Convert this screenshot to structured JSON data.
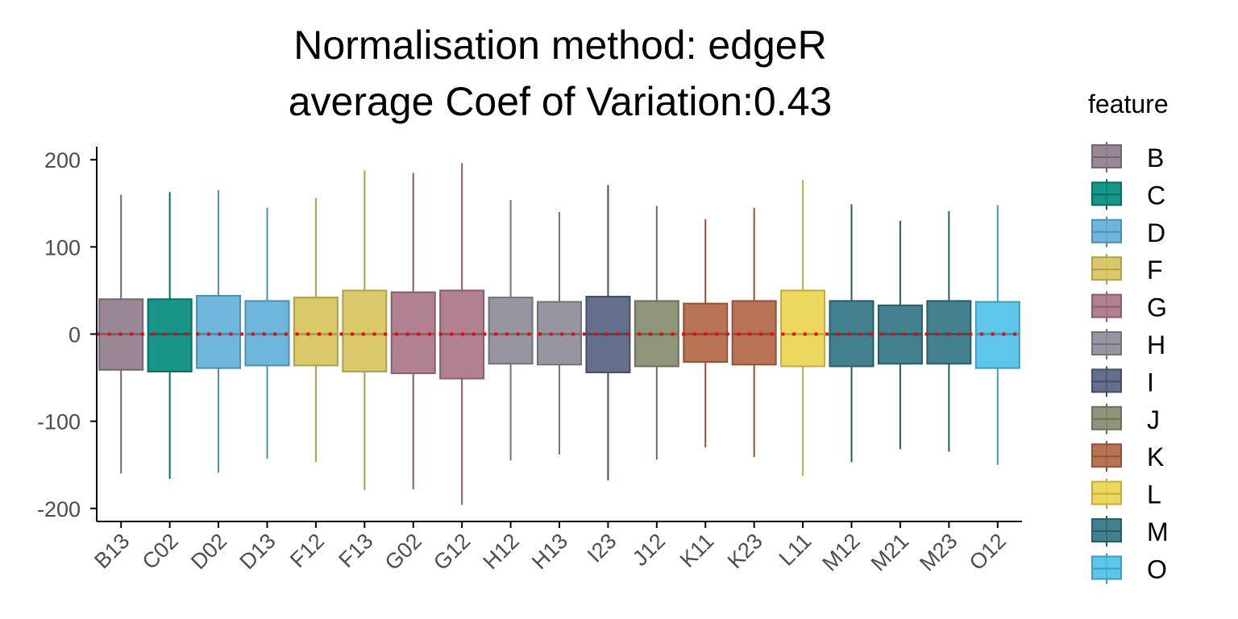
{
  "chart_data": {
    "type": "box",
    "title": [
      "Normalisation method: edgeR",
      "average Coef of Variation:0.43"
    ],
    "xlabel": "",
    "ylabel": "",
    "ylim": [
      -215,
      215
    ],
    "yticks": [
      -200,
      -100,
      0,
      100,
      200
    ],
    "ytick_labels": [
      "-200",
      "-100",
      "0",
      "100",
      "200"
    ],
    "reference_line": {
      "y": 0,
      "style": "dotted",
      "color": "#ff0000"
    },
    "grid": false,
    "legend": {
      "title": "feature",
      "placement": "right",
      "entries": [
        {
          "label": "B",
          "color": "#8f7a8a"
        },
        {
          "label": "C",
          "color": "#00897b"
        },
        {
          "label": "D",
          "color": "#5eaed8"
        },
        {
          "label": "F",
          "color": "#d6c35a"
        },
        {
          "label": "G",
          "color": "#a87285"
        },
        {
          "label": "H",
          "color": "#8c8a96"
        },
        {
          "label": "I",
          "color": "#535f80"
        },
        {
          "label": "J",
          "color": "#828a6c"
        },
        {
          "label": "K",
          "color": "#b06442"
        },
        {
          "label": "L",
          "color": "#ead44e"
        },
        {
          "label": "M",
          "color": "#2f7282"
        },
        {
          "label": "O",
          "color": "#4cbfe9"
        }
      ]
    },
    "boxes": [
      {
        "category": "B13",
        "feature": "B",
        "min": -160,
        "q1": -41,
        "median": 0,
        "q3": 40,
        "max": 160
      },
      {
        "category": "C02",
        "feature": "C",
        "min": -166,
        "q1": -43,
        "median": 0,
        "q3": 40,
        "max": 163
      },
      {
        "category": "D02",
        "feature": "D",
        "min": -159,
        "q1": -39,
        "median": 0,
        "q3": 44,
        "max": 165
      },
      {
        "category": "D13",
        "feature": "D",
        "min": -143,
        "q1": -36,
        "median": 0,
        "q3": 38,
        "max": 145
      },
      {
        "category": "F12",
        "feature": "F",
        "min": -147,
        "q1": -36,
        "median": 0,
        "q3": 42,
        "max": 156
      },
      {
        "category": "F13",
        "feature": "F",
        "min": -179,
        "q1": -43,
        "median": 0,
        "q3": 50,
        "max": 188
      },
      {
        "category": "G02",
        "feature": "G",
        "min": -178,
        "q1": -45,
        "median": 0,
        "q3": 48,
        "max": 185
      },
      {
        "category": "G12",
        "feature": "G",
        "min": -196,
        "q1": -51,
        "median": 0,
        "q3": 50,
        "max": 196
      },
      {
        "category": "H12",
        "feature": "H",
        "min": -145,
        "q1": -34,
        "median": 0,
        "q3": 42,
        "max": 154
      },
      {
        "category": "H13",
        "feature": "H",
        "min": -138,
        "q1": -35,
        "median": 0,
        "q3": 37,
        "max": 140
      },
      {
        "category": "I23",
        "feature": "I",
        "min": -168,
        "q1": -44,
        "median": 0,
        "q3": 43,
        "max": 171
      },
      {
        "category": "J12",
        "feature": "J",
        "min": -144,
        "q1": -37,
        "median": 0,
        "q3": 38,
        "max": 147
      },
      {
        "category": "K11",
        "feature": "K",
        "min": -130,
        "q1": -32,
        "median": 0,
        "q3": 35,
        "max": 132
      },
      {
        "category": "K23",
        "feature": "K",
        "min": -141,
        "q1": -35,
        "median": 0,
        "q3": 38,
        "max": 145
      },
      {
        "category": "L11",
        "feature": "L",
        "min": -163,
        "q1": -37,
        "median": 0,
        "q3": 50,
        "max": 177
      },
      {
        "category": "M12",
        "feature": "M",
        "min": -147,
        "q1": -37,
        "median": 0,
        "q3": 38,
        "max": 149
      },
      {
        "category": "M21",
        "feature": "M",
        "min": -132,
        "q1": -34,
        "median": 0,
        "q3": 33,
        "max": 130
      },
      {
        "category": "M23",
        "feature": "M",
        "min": -135,
        "q1": -34,
        "median": 0,
        "q3": 38,
        "max": 141
      },
      {
        "category": "O12",
        "feature": "O",
        "min": -150,
        "q1": -39,
        "median": 0,
        "q3": 37,
        "max": 148
      }
    ]
  }
}
